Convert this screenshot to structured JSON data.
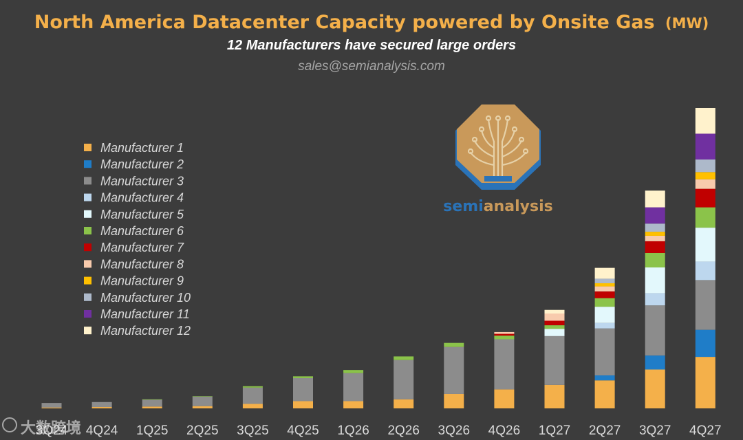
{
  "chart_data": {
    "type": "bar",
    "stacked": true,
    "title": "North America Datacenter Capacity powered by Onsite Gas",
    "title_unit": "(MW)",
    "subtitle": "12 Manufacturers have secured large orders",
    "contact": "sales@semianalysis.com",
    "categories": [
      "3Q24",
      "4Q24",
      "1Q25",
      "2Q25",
      "3Q25",
      "4Q25",
      "1Q26",
      "2Q26",
      "3Q26",
      "4Q26",
      "1Q27",
      "2Q27",
      "3Q27",
      "4Q27"
    ],
    "legend_position": "left",
    "ylim": [
      0,
      3500
    ],
    "series": [
      {
        "name": "Manufacturer 1",
        "color": "#F4B04A",
        "values": [
          10,
          15,
          20,
          25,
          50,
          80,
          80,
          100,
          160,
          210,
          260,
          310,
          430,
          570
        ]
      },
      {
        "name": "Manufacturer 2",
        "color": "#1F7DC8",
        "values": [
          0,
          0,
          0,
          0,
          0,
          0,
          0,
          0,
          0,
          0,
          0,
          55,
          155,
          300
        ]
      },
      {
        "name": "Manufacturer 3",
        "color": "#8C8C8C",
        "values": [
          50,
          55,
          75,
          105,
          180,
          255,
          310,
          435,
          520,
          555,
          540,
          520,
          555,
          550
        ]
      },
      {
        "name": "Manufacturer 4",
        "color": "#BDD7EE",
        "values": [
          0,
          0,
          0,
          0,
          0,
          0,
          0,
          0,
          0,
          0,
          0,
          60,
          135,
          205
        ]
      },
      {
        "name": "Manufacturer 5",
        "color": "#E3F8FC",
        "values": [
          0,
          0,
          0,
          0,
          0,
          0,
          0,
          0,
          0,
          0,
          80,
          180,
          285,
          375
        ]
      },
      {
        "name": "Manufacturer 6",
        "color": "#8BC34A",
        "values": [
          0,
          0,
          5,
          5,
          15,
          20,
          35,
          40,
          45,
          40,
          40,
          95,
          160,
          225
        ]
      },
      {
        "name": "Manufacturer 7",
        "color": "#C00000",
        "values": [
          0,
          0,
          0,
          0,
          0,
          0,
          0,
          0,
          0,
          20,
          50,
          75,
          130,
          205
        ]
      },
      {
        "name": "Manufacturer 8",
        "color": "#F8CBAD",
        "values": [
          0,
          0,
          0,
          0,
          0,
          0,
          0,
          0,
          0,
          20,
          80,
          55,
          60,
          105
        ]
      },
      {
        "name": "Manufacturer 9",
        "color": "#FFC000",
        "values": [
          0,
          0,
          0,
          0,
          0,
          0,
          0,
          0,
          0,
          0,
          0,
          35,
          45,
          80
        ]
      },
      {
        "name": "Manufacturer 10",
        "color": "#ADB9CA",
        "values": [
          0,
          0,
          0,
          0,
          0,
          0,
          0,
          0,
          0,
          0,
          0,
          50,
          90,
          140
        ]
      },
      {
        "name": "Manufacturer 11",
        "color": "#7030A0",
        "values": [
          0,
          0,
          0,
          0,
          0,
          0,
          0,
          0,
          0,
          0,
          0,
          0,
          180,
          285
        ]
      },
      {
        "name": "Manufacturer 12",
        "color": "#FFF2CC",
        "values": [
          0,
          0,
          0,
          0,
          0,
          0,
          0,
          0,
          0,
          0,
          40,
          120,
          185,
          285
        ]
      }
    ]
  },
  "logo": {
    "text_left": "semi",
    "text_right": "analysis"
  },
  "watermark": {
    "text": "大数跨境"
  },
  "colors": {
    "background": "#3c3c3c",
    "title": "#F4B04A",
    "subtitle": "#ffffff",
    "contact": "#a6a6a6",
    "axis_text": "#d9d9d9",
    "legend_text": "#d9d9d9"
  }
}
